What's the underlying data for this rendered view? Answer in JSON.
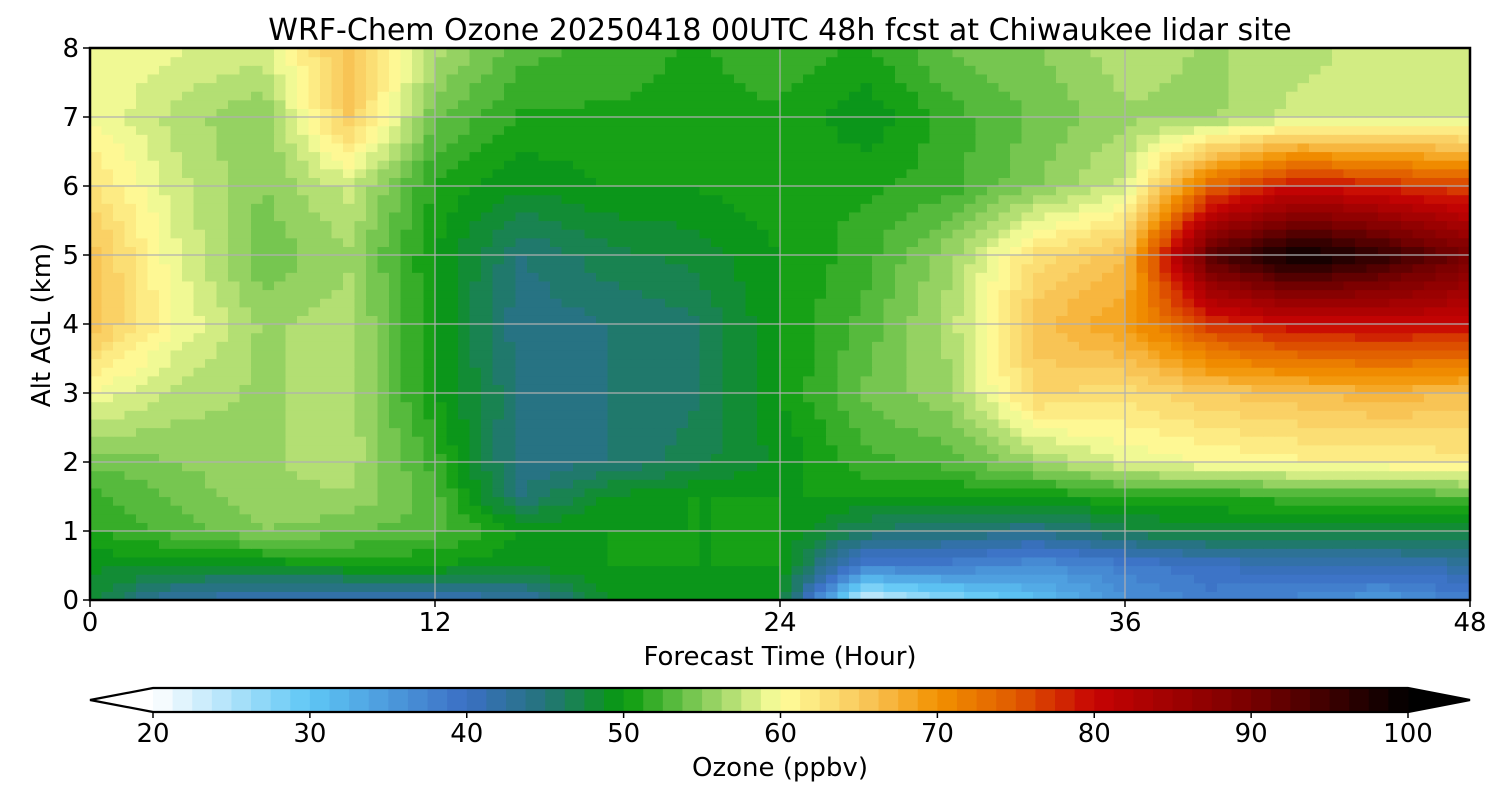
{
  "chart_data": {
    "type": "heatmap",
    "title": "WRF-Chem Ozone  20250418 00UTC 48h fcst at Chiwaukee lidar site",
    "xlabel": "Forecast Time (Hour)",
    "ylabel": "Alt AGL (km)",
    "xlim": [
      0,
      48
    ],
    "ylim": [
      0,
      8
    ],
    "x_ticks": [
      0,
      12,
      24,
      36,
      48
    ],
    "y_ticks": [
      0,
      1,
      2,
      3,
      4,
      5,
      6,
      7,
      8
    ],
    "grid": true,
    "x": [
      0,
      3,
      6,
      9,
      12,
      15,
      18,
      21,
      24,
      27,
      30,
      33,
      36,
      39,
      42,
      45,
      48
    ],
    "y": [
      0,
      0.5,
      1,
      1.5,
      2,
      3,
      4,
      5,
      6,
      7,
      8
    ],
    "z": [
      [
        48,
        42,
        41,
        40,
        41,
        42,
        49,
        49,
        49,
        22,
        27,
        31,
        36,
        38,
        37,
        35,
        38
      ],
      [
        49,
        49,
        49,
        50,
        50,
        49,
        50,
        50,
        50,
        38,
        38,
        36,
        38,
        40,
        41,
        41,
        42
      ],
      [
        51,
        53,
        55,
        54,
        53,
        50,
        50,
        50,
        50,
        46,
        45,
        44,
        47,
        48,
        48,
        48,
        48
      ],
      [
        52,
        54,
        56,
        56,
        53,
        45,
        49,
        50,
        50,
        50,
        50,
        50,
        51,
        51,
        52,
        52,
        53
      ],
      [
        54,
        55,
        56,
        57,
        52,
        44,
        45,
        47,
        49,
        52,
        53,
        56,
        59,
        60,
        61,
        61,
        62
      ],
      [
        60,
        57,
        56,
        57,
        50,
        45,
        45,
        46,
        50,
        54,
        56,
        64,
        63,
        65,
        66,
        67,
        66
      ],
      [
        66,
        60,
        56,
        57,
        50,
        44,
        45,
        46,
        50,
        53,
        57,
        66,
        69,
        77,
        80,
        80,
        80
      ],
      [
        66,
        59,
        54,
        56,
        50,
        45,
        47,
        48,
        50,
        52,
        56,
        63,
        66,
        93,
        100,
        96,
        90
      ],
      [
        63,
        58,
        55,
        58,
        51,
        49,
        50,
        50,
        51,
        51,
        52,
        55,
        58,
        74,
        80,
        78,
        76
      ],
      [
        60,
        57,
        55,
        65,
        54,
        51,
        51,
        51,
        51,
        49,
        52,
        54,
        56,
        56,
        58,
        58,
        58
      ],
      [
        60,
        59,
        58,
        66,
        57,
        53,
        52,
        51,
        52,
        51,
        54,
        55,
        57,
        56,
        57,
        58,
        58
      ]
    ],
    "colorbar": {
      "label": "Ozone  (ppbv)",
      "min": 20,
      "max": 100,
      "ticks": [
        20,
        30,
        40,
        50,
        60,
        70,
        80,
        90,
        100
      ],
      "extend": "both",
      "colors": [
        {
          "v": 20,
          "c": "#ffffff"
        },
        {
          "v": 30,
          "c": "#5ec6f5"
        },
        {
          "v": 40,
          "c": "#3b6fc4"
        },
        {
          "v": 45,
          "c": "#24747a"
        },
        {
          "v": 50,
          "c": "#079b0c"
        },
        {
          "v": 55,
          "c": "#86cc5a"
        },
        {
          "v": 60,
          "c": "#ffff9c"
        },
        {
          "v": 66,
          "c": "#f8c050"
        },
        {
          "v": 70,
          "c": "#f29200"
        },
        {
          "v": 75,
          "c": "#e05a00"
        },
        {
          "v": 80,
          "c": "#c70303"
        },
        {
          "v": 90,
          "c": "#780000"
        },
        {
          "v": 100,
          "c": "#000000"
        }
      ]
    }
  }
}
